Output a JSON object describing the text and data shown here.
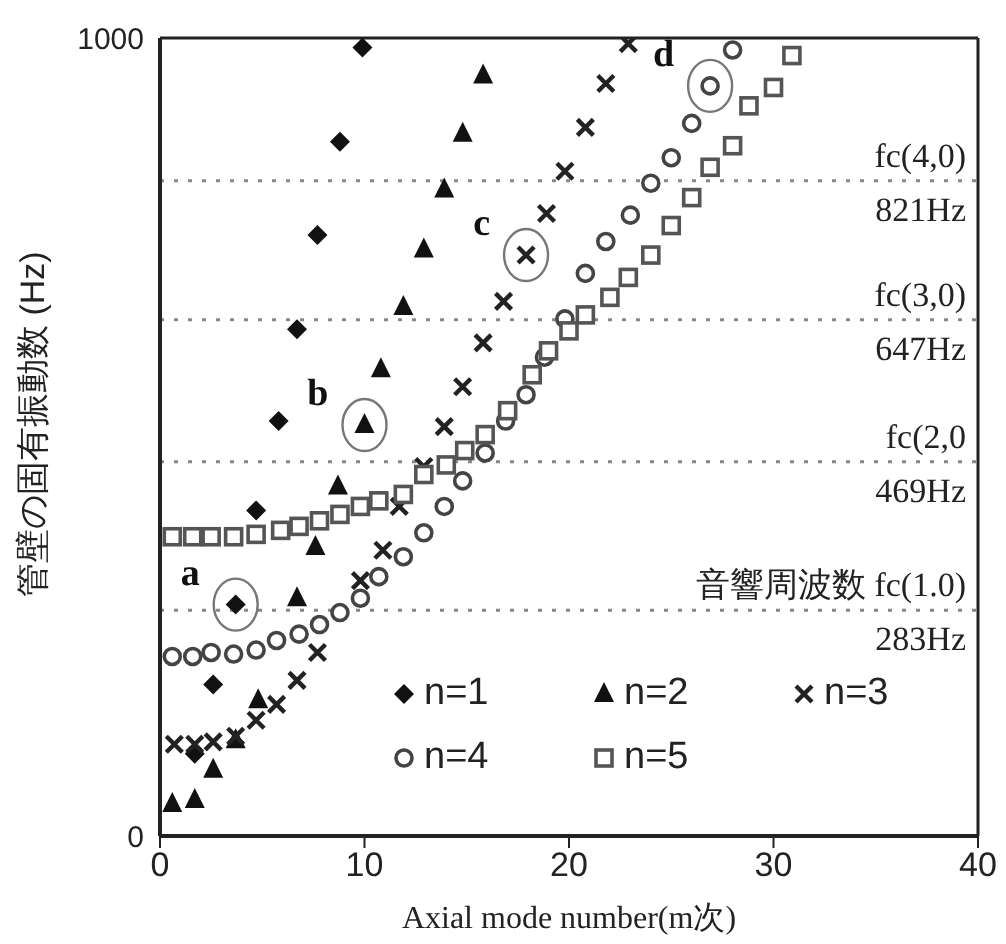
{
  "chart_data": {
    "type": "scatter",
    "xlabel": "Axial mode number(m次)",
    "ylabel": "管壁の固有振動数 (Hz)",
    "xlim": [
      0,
      40
    ],
    "xticks": [
      0,
      10,
      20,
      30,
      40
    ],
    "ylim": [
      0,
      1000
    ],
    "yticks": [
      0,
      1000
    ],
    "legend": "bottom right",
    "series": [
      {
        "name": "n=1",
        "color": "#111111",
        "marker": "diamond",
        "x": [
          1.7,
          2.6,
          3.7,
          4.7,
          5.8,
          6.7,
          7.7,
          8.8,
          9.9
        ],
        "values": [
          103,
          190,
          290,
          408,
          520,
          635,
          753,
          870,
          988
        ]
      },
      {
        "name": "n=2",
        "color": "#111111",
        "marker": "triangle",
        "x": [
          0.6,
          1.7,
          2.6,
          3.7,
          4.8,
          6.7,
          7.6,
          8.7,
          10.0,
          10.8,
          11.9,
          12.9,
          13.9,
          14.8,
          15.8
        ],
        "values": [
          40,
          45,
          83,
          120,
          170,
          298,
          362,
          438,
          515,
          585,
          663,
          735,
          810,
          880,
          953
        ]
      },
      {
        "name": "n=3",
        "color": "#222222",
        "marker": "cross",
        "x": [
          0.7,
          1.7,
          2.6,
          3.7,
          4.7,
          5.7,
          6.7,
          7.7,
          9.8,
          10.9,
          11.7,
          12.9,
          13.9,
          14.8,
          15.8,
          16.8,
          17.9,
          18.9,
          19.8,
          20.8,
          21.8,
          22.9
        ],
        "values": [
          115,
          115,
          118,
          125,
          145,
          165,
          195,
          230,
          320,
          358,
          413,
          463,
          513,
          563,
          618,
          670,
          728,
          780,
          833,
          888,
          943,
          993
        ]
      },
      {
        "name": "n=4",
        "color": "#444444",
        "marker": "circle",
        "x": [
          0.6,
          1.6,
          2.5,
          3.6,
          4.7,
          5.7,
          6.8,
          7.8,
          8.8,
          9.8,
          10.7,
          11.9,
          12.9,
          13.9,
          14.8,
          15.9,
          16.9,
          17.9,
          18.8,
          19.8,
          20.8,
          21.8,
          23,
          24,
          25,
          26,
          26.9,
          28
        ],
        "values": [
          225,
          225,
          230,
          228,
          233,
          245,
          253,
          265,
          280,
          298,
          325,
          350,
          380,
          413,
          445,
          480,
          520,
          553,
          600,
          648,
          705,
          745,
          778,
          818,
          850,
          893,
          940,
          985
        ]
      },
      {
        "name": "n=5",
        "color": "#555555",
        "marker": "square",
        "x": [
          0.6,
          1.6,
          2.5,
          3.6,
          4.7,
          5.9,
          6.8,
          7.8,
          8.8,
          9.8,
          10.7,
          11.9,
          12.9,
          14,
          14.9,
          15.9,
          17,
          18.2,
          19,
          20,
          20.8,
          22,
          22.9,
          24,
          25,
          26,
          26.9,
          28,
          28.8,
          30,
          30.9
        ],
        "values": [
          375,
          375,
          375,
          375,
          378,
          383,
          388,
          395,
          403,
          413,
          420,
          428,
          453,
          465,
          483,
          503,
          533,
          578,
          608,
          633,
          653,
          675,
          700,
          728,
          765,
          800,
          838,
          865,
          915,
          938,
          978
        ]
      }
    ],
    "ref_lines": [
      {
        "axis": "y",
        "value": 821,
        "label": "fc(4,0)\n821Hz",
        "line_style": "dotted",
        "color": "#888888"
      },
      {
        "axis": "y",
        "value": 647,
        "label": "fc(3,0)\n647Hz",
        "line_style": "dotted",
        "color": "#888888"
      },
      {
        "axis": "y",
        "value": 469,
        "label": "fc(2,0\n469Hz",
        "line_style": "dotted",
        "color": "#888888"
      },
      {
        "axis": "y",
        "value": 283,
        "label": "音響周波数 fc(1.0)\n283Hz",
        "line_style": "dotted",
        "color": "#888888"
      }
    ],
    "annotations": [
      {
        "text": "a",
        "x": 3.7,
        "y": 290
      },
      {
        "text": "b",
        "x": 10.0,
        "y": 515
      },
      {
        "text": "c",
        "x": 17.9,
        "y": 728
      },
      {
        "text": "d",
        "x": 26.9,
        "y": 940
      }
    ]
  }
}
